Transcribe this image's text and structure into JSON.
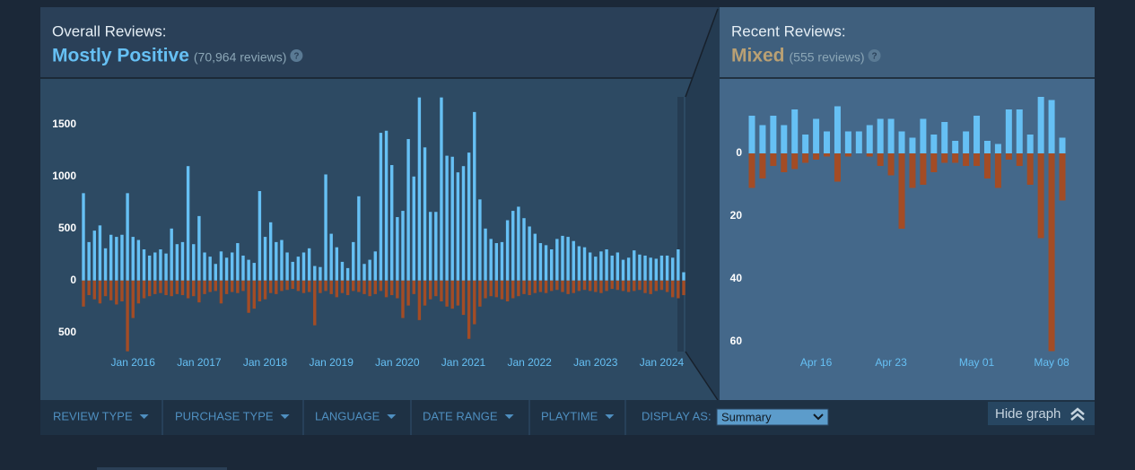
{
  "overall": {
    "label": "Overall Reviews:",
    "summary": "Mostly Positive",
    "count": "(70,964 reviews)",
    "help": "?",
    "color": "#66c0f4"
  },
  "recent": {
    "label": "Recent Reviews:",
    "summary": "Mixed",
    "count": "(555 reviews)",
    "help": "?",
    "color": "#b9a074"
  },
  "filters": [
    "REVIEW TYPE",
    "PURCHASE TYPE",
    "LANGUAGE",
    "DATE RANGE",
    "PLAYTIME"
  ],
  "display_as": {
    "label": "DISPLAY AS:",
    "value": "Summary"
  },
  "hide_graph": "Hide graph",
  "chart_data": [
    {
      "type": "bar",
      "categories": [
        null,
        null,
        null,
        null,
        null,
        null,
        null,
        null,
        null,
        "Jan 2016",
        null,
        null,
        null,
        null,
        null,
        null,
        null,
        null,
        null,
        null,
        null,
        "Jan 2017",
        null,
        null,
        null,
        null,
        null,
        null,
        null,
        null,
        null,
        null,
        null,
        "Jan 2018",
        null,
        null,
        null,
        null,
        null,
        null,
        null,
        null,
        null,
        null,
        null,
        "Jan 2019",
        null,
        null,
        null,
        null,
        null,
        null,
        null,
        null,
        null,
        null,
        null,
        "Jan 2020",
        null,
        null,
        null,
        null,
        null,
        null,
        null,
        null,
        null,
        null,
        null,
        "Jan 2021",
        null,
        null,
        null,
        null,
        null,
        null,
        null,
        null,
        null,
        null,
        null,
        "Jan 2022",
        null,
        null,
        null,
        null,
        null,
        null,
        null,
        null,
        null,
        null,
        null,
        "Jan 2023",
        null,
        null,
        null,
        null,
        null,
        null,
        null,
        null,
        null,
        null,
        null,
        "Jan 2024",
        null,
        null,
        null,
        null
      ],
      "series": [
        {
          "color": "#66c0f4",
          "values": [
            840,
            370,
            480,
            530,
            310,
            440,
            420,
            440,
            840,
            420,
            390,
            300,
            240,
            270,
            300,
            260,
            500,
            350,
            370,
            1100,
            350,
            620,
            270,
            230,
            160,
            280,
            220,
            270,
            360,
            240,
            200,
            170,
            860,
            420,
            560,
            370,
            390,
            270,
            180,
            230,
            270,
            310,
            140,
            130,
            1020,
            450,
            320,
            180,
            120,
            370,
            810,
            160,
            200,
            280,
            1420,
            1440,
            1110,
            610,
            670,
            1360,
            1000,
            1760,
            1280,
            660,
            660,
            1760,
            1200,
            1190,
            1040,
            1100,
            1230,
            1620,
            780,
            500,
            400,
            360,
            370,
            580,
            670,
            710,
            600,
            520,
            450,
            360,
            340,
            300,
            400,
            430,
            420,
            380,
            330,
            320,
            270,
            230,
            280,
            300,
            240,
            270,
            200,
            220,
            290,
            250,
            240,
            220,
            210,
            240,
            240,
            220,
            300,
            80
          ]
        },
        {
          "color": "#a34c25",
          "values": [
            -250,
            -140,
            -180,
            -220,
            -150,
            -190,
            -230,
            -200,
            -680,
            -360,
            -220,
            -170,
            -150,
            -130,
            -120,
            -140,
            -150,
            -130,
            -140,
            -170,
            -150,
            -210,
            -130,
            -110,
            -100,
            -220,
            -130,
            -110,
            -120,
            -100,
            -310,
            -270,
            -200,
            -180,
            -120,
            -130,
            -100,
            -90,
            -80,
            -100,
            -120,
            -110,
            -430,
            -120,
            -100,
            -130,
            -160,
            -120,
            -140,
            -100,
            -110,
            -130,
            -150,
            -130,
            -100,
            -160,
            -140,
            -170,
            -360,
            -240,
            -130,
            -380,
            -240,
            -180,
            -150,
            -200,
            -250,
            -270,
            -240,
            -330,
            -560,
            -420,
            -250,
            -170,
            -150,
            -160,
            -180,
            -200,
            -170,
            -150,
            -130,
            -140,
            -120,
            -110,
            -120,
            -100,
            -90,
            -110,
            -130,
            -120,
            -100,
            -90,
            -100,
            -110,
            -120,
            -100,
            -80,
            -90,
            -100,
            -110,
            -100,
            -90,
            -120,
            -130,
            -100,
            -90,
            -110,
            -160,
            -170,
            -140
          ]
        }
      ],
      "ylim": [
        -700,
        1800
      ],
      "yticks": [
        1500,
        1000,
        500,
        0,
        {
          "value": -500,
          "label": "500"
        }
      ],
      "grid": false
    },
    {
      "type": "bar",
      "categories": [
        null,
        null,
        null,
        null,
        null,
        null,
        "Apr 16",
        null,
        null,
        null,
        null,
        null,
        null,
        "Apr 23",
        null,
        null,
        null,
        null,
        null,
        null,
        null,
        "May 01",
        null,
        null,
        null,
        null,
        null,
        null,
        "May 08",
        null
      ],
      "series": [
        {
          "color": "#66c0f4",
          "values": [
            12,
            9,
            12,
            9,
            14,
            6,
            11,
            7,
            15,
            7,
            7,
            9,
            11,
            11,
            7,
            5,
            11,
            6,
            10,
            4,
            7,
            12,
            4,
            3,
            14,
            14,
            6,
            18,
            17,
            5
          ]
        },
        {
          "color": "#a34c25",
          "values": [
            -11,
            -8,
            -4,
            -6,
            -5,
            -3,
            -2,
            -1,
            -9,
            -1,
            0,
            -1,
            -4,
            -7,
            -24,
            -11,
            -10,
            -6,
            -3,
            -3,
            -4,
            -4,
            -8,
            -11,
            -2,
            -4,
            -10,
            -27,
            -63,
            -15
          ]
        }
      ],
      "ylim": [
        -65,
        20
      ],
      "yticks": [
        0,
        {
          "value": -20,
          "label": "20"
        },
        {
          "value": -40,
          "label": "40"
        },
        {
          "value": -60,
          "label": "60"
        }
      ],
      "grid": false
    }
  ]
}
